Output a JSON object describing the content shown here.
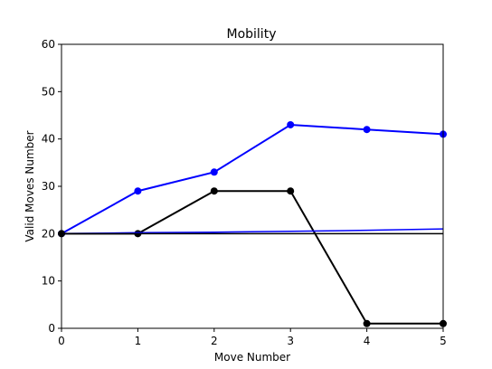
{
  "chart_data": {
    "type": "line",
    "title": "Mobility",
    "xlabel": "Move Number",
    "ylabel": "Valid Moves Number",
    "xlim": [
      0,
      5
    ],
    "ylim": [
      0,
      60
    ],
    "xticks": [
      "0",
      "1",
      "2",
      "3",
      "4",
      "5"
    ],
    "yticks": [
      "0",
      "10",
      "20",
      "30",
      "40",
      "50",
      "60"
    ],
    "grid": false,
    "legend": "none",
    "series": [
      {
        "color": "#0000ff",
        "marker": true,
        "x": [
          0,
          1,
          2,
          3,
          4,
          5
        ],
        "values": [
          20,
          29,
          33,
          43,
          42,
          41
        ]
      },
      {
        "color": "#000000",
        "marker": true,
        "x": [
          0,
          1,
          2,
          3,
          4,
          5
        ],
        "values": [
          20,
          20,
          29,
          29,
          1,
          1
        ]
      },
      {
        "color": "#0000ff",
        "marker": false,
        "x": [
          0,
          1,
          2,
          3,
          4,
          5
        ],
        "values": [
          20,
          20.2,
          20.3,
          20.5,
          20.7,
          21
        ]
      },
      {
        "color": "#000000",
        "marker": false,
        "x": [
          0,
          1,
          2,
          3,
          4,
          5
        ],
        "values": [
          20,
          20,
          20,
          20,
          20,
          20
        ]
      }
    ]
  }
}
